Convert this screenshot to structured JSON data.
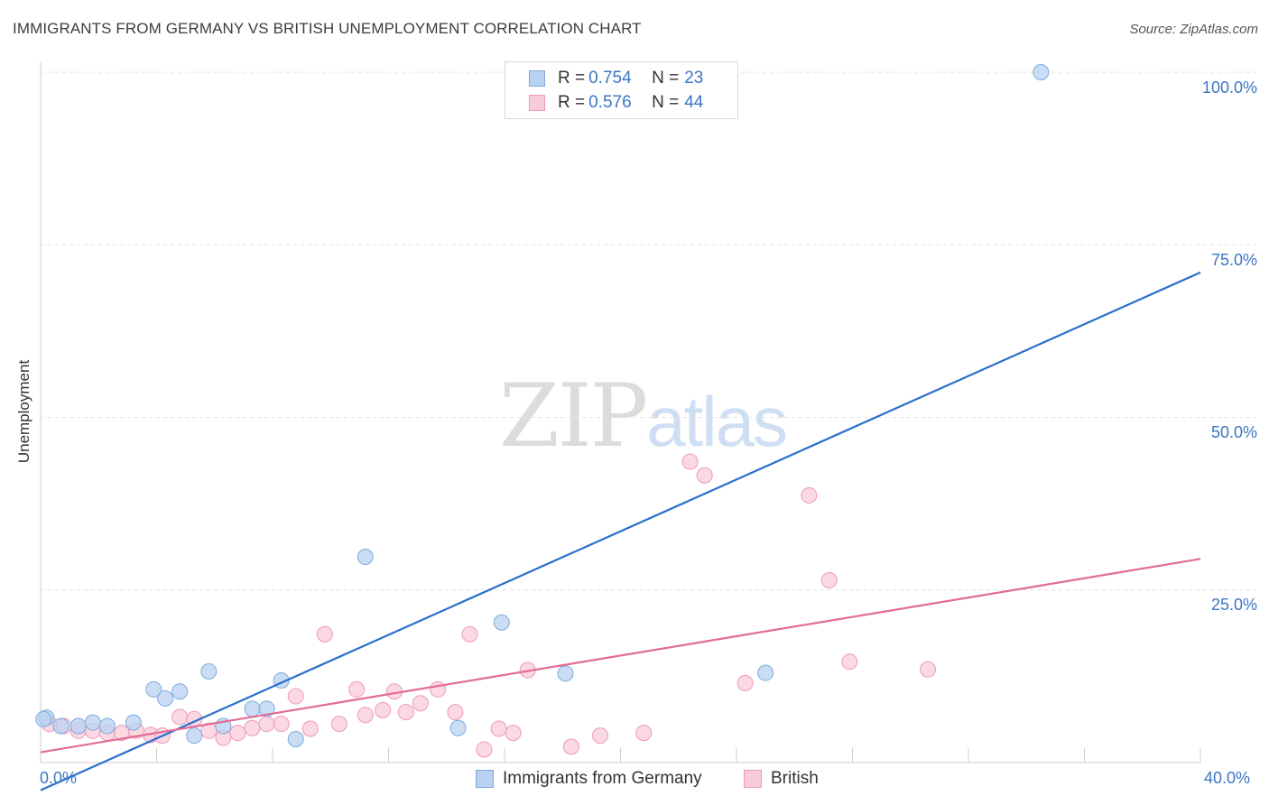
{
  "title": "IMMIGRANTS FROM GERMANY VS BRITISH UNEMPLOYMENT CORRELATION CHART",
  "source": "Source: ZipAtlas.com",
  "watermark": {
    "zip": "ZIP",
    "atlas": "atlas"
  },
  "legend": {
    "rows": [
      {
        "r_label": "R = ",
        "r_value": "0.754",
        "n_label": "N = ",
        "n_value": "23",
        "color": "#b8d2f2",
        "border": "#7fa9de"
      },
      {
        "r_label": "R = ",
        "r_value": "0.576",
        "n_label": "N = ",
        "n_value": "44",
        "color": "#f9ccd9",
        "border": "#ee9ab5"
      }
    ]
  },
  "colors": {
    "blue_line": "#2a6fcc",
    "pink_line": "#e36b96",
    "blue_fill": "#b8d2f2",
    "pink_fill": "#f9ccd9",
    "accent_text": "#3b76c4"
  },
  "chart_data": {
    "type": "scatter",
    "title": "IMMIGRANTS FROM GERMANY VS BRITISH UNEMPLOYMENT CORRELATION CHART",
    "xlabel": "",
    "ylabel": "Unemployment",
    "xlim": [
      0,
      40
    ],
    "ylim": [
      0,
      100
    ],
    "x_tick_labels": [
      "0.0%",
      "40.0%"
    ],
    "y_tick_labels": [
      "100.0%",
      "75.0%",
      "50.0%",
      "25.0%"
    ],
    "y_ticks": [
      100,
      75,
      50,
      25
    ],
    "grid": true,
    "legend_position": "top-center",
    "series": [
      {
        "name": "Immigrants from Germany",
        "color": "#b8d2f2",
        "trend": {
          "start": [
            0,
            -4
          ],
          "end": [
            40,
            71
          ]
        },
        "points": [
          [
            0.2,
            6.5
          ],
          [
            0.7,
            5.3
          ],
          [
            1.3,
            5.3
          ],
          [
            1.8,
            5.8
          ],
          [
            2.3,
            5.3
          ],
          [
            3.2,
            5.8
          ],
          [
            3.9,
            10.6
          ],
          [
            4.3,
            9.3
          ],
          [
            4.8,
            10.3
          ],
          [
            5.3,
            3.9
          ],
          [
            5.8,
            13.2
          ],
          [
            6.3,
            5.3
          ],
          [
            7.3,
            7.8
          ],
          [
            7.8,
            7.8
          ],
          [
            8.3,
            11.9
          ],
          [
            8.8,
            3.4
          ],
          [
            11.2,
            29.8
          ],
          [
            14.4,
            5.0
          ],
          [
            15.9,
            20.3
          ],
          [
            18.1,
            12.9
          ],
          [
            25.0,
            13.0
          ],
          [
            34.5,
            100.0
          ],
          [
            0.1,
            6.3
          ]
        ]
      },
      {
        "name": "British",
        "color": "#f9ccd9",
        "trend": {
          "start": [
            0,
            1.5
          ],
          "end": [
            40,
            29.5
          ]
        },
        "points": [
          [
            0.3,
            5.6
          ],
          [
            0.8,
            5.3
          ],
          [
            1.3,
            4.6
          ],
          [
            1.8,
            4.6
          ],
          [
            2.3,
            4.3
          ],
          [
            2.8,
            4.3
          ],
          [
            3.3,
            4.6
          ],
          [
            3.8,
            4.0
          ],
          [
            4.2,
            3.9
          ],
          [
            4.8,
            6.6
          ],
          [
            5.3,
            6.3
          ],
          [
            5.8,
            4.6
          ],
          [
            6.3,
            3.6
          ],
          [
            6.8,
            4.3
          ],
          [
            7.3,
            5.0
          ],
          [
            7.8,
            5.6
          ],
          [
            8.3,
            5.6
          ],
          [
            8.8,
            9.6
          ],
          [
            9.3,
            4.9
          ],
          [
            9.8,
            18.6
          ],
          [
            10.3,
            5.6
          ],
          [
            10.9,
            10.6
          ],
          [
            11.2,
            6.9
          ],
          [
            11.8,
            7.6
          ],
          [
            12.2,
            10.3
          ],
          [
            12.6,
            7.3
          ],
          [
            13.1,
            8.6
          ],
          [
            13.7,
            10.6
          ],
          [
            14.3,
            7.3
          ],
          [
            14.8,
            18.6
          ],
          [
            15.3,
            1.9
          ],
          [
            15.8,
            4.9
          ],
          [
            16.3,
            4.3
          ],
          [
            16.8,
            13.4
          ],
          [
            18.3,
            2.3
          ],
          [
            19.3,
            3.9
          ],
          [
            20.8,
            4.3
          ],
          [
            22.4,
            43.6
          ],
          [
            22.9,
            41.6
          ],
          [
            24.3,
            11.5
          ],
          [
            26.5,
            38.7
          ],
          [
            27.2,
            26.4
          ],
          [
            27.9,
            14.6
          ],
          [
            30.6,
            13.5
          ]
        ]
      }
    ]
  }
}
